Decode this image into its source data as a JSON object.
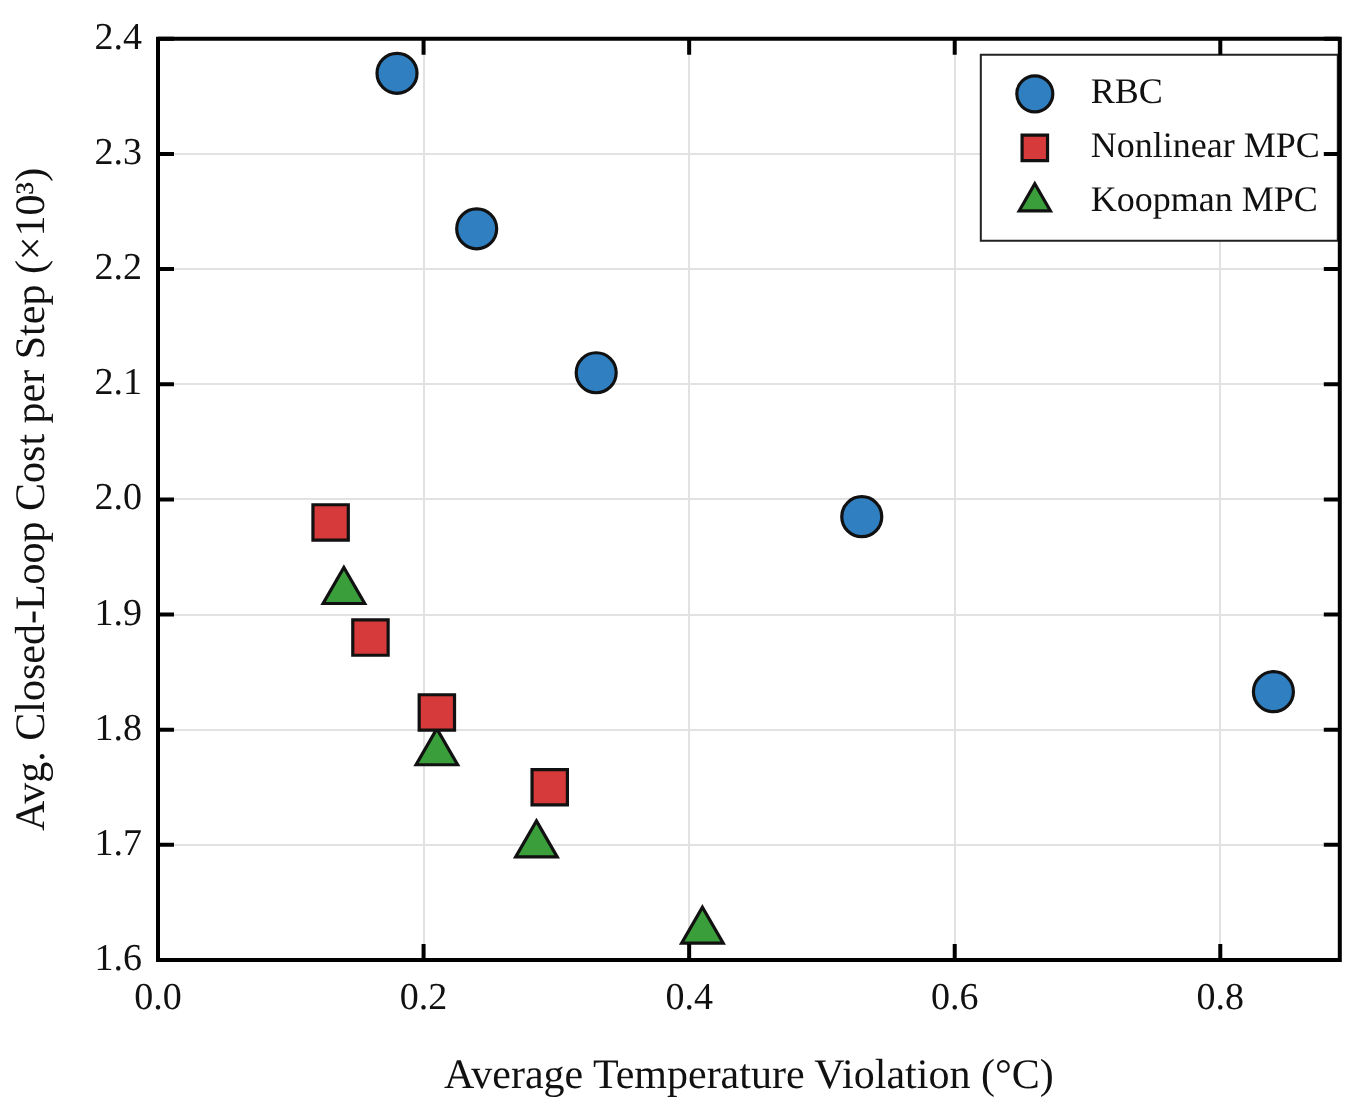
{
  "chart_data": {
    "type": "scatter",
    "xlabel": "Average Temperature Violation (°C)",
    "ylabel": "Avg. Closed-Loop Cost per Step (×10³)",
    "xlim": [
      0,
      0.89
    ],
    "xticks": [
      {
        "value": 0,
        "label": "0.0"
      },
      0.2,
      0.4,
      0.6,
      0.8
    ],
    "ylim": [
      1.6,
      2.4
    ],
    "yticks": [
      1.6,
      1.7,
      1.8,
      1.9,
      {
        "value": 2,
        "label": "2.0"
      },
      2.1,
      2.2,
      2.3,
      2.4
    ],
    "grid": true,
    "legend": "top right",
    "series": [
      {
        "name": "RBC",
        "color": "#2f7fc1",
        "marker": "circle",
        "x": [
          0.18,
          0.24,
          0.33,
          0.53,
          0.84
        ],
        "values": [
          2.37,
          2.235,
          2.11,
          1.985,
          1.833
        ]
      },
      {
        "name": "Nonlinear MPC",
        "color": "#d63a3a",
        "marker": "square",
        "x": [
          0.13,
          0.16,
          0.21,
          0.295
        ],
        "values": [
          1.98,
          1.88,
          1.815,
          1.75
        ]
      },
      {
        "name": "Koopman MPC",
        "color": "#3a9e3a",
        "marker": "triangle",
        "x": [
          0.14,
          0.21,
          0.285,
          0.41
        ],
        "values": [
          1.92,
          1.78,
          1.7,
          1.625
        ]
      }
    ]
  }
}
